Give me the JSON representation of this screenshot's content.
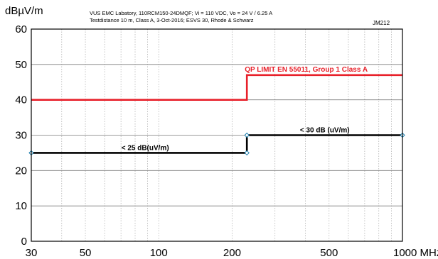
{
  "chart_data": {
    "type": "line",
    "ylabel": "dBµV/m",
    "header_lines": [
      "VUS EMC Labatory, 110RCM150-24DMQF; Vi = 110 VDC, Vo = 24 V / 6.25 A",
      "Testdistance 10 m, Class A, 3-Oct-2016; ESVS 30, Rhode & Schwarz"
    ],
    "code": "JM212",
    "x_scale": "log",
    "xlim": [
      30,
      1000
    ],
    "ylim": [
      0,
      60
    ],
    "x_ticks": [
      30,
      50,
      100,
      200,
      500,
      1000
    ],
    "x_tick_labels": [
      "30",
      "50",
      "100",
      "200",
      "500",
      "1000 MHz"
    ],
    "y_ticks": [
      0,
      10,
      20,
      30,
      40,
      50,
      60
    ],
    "y_tick_labels": [
      "0",
      "10",
      "20",
      "30",
      "40",
      "50",
      "60"
    ],
    "grid": true,
    "series": [
      {
        "name": "QP LIMIT  EN 55011, Group 1 Class A",
        "color": "#e8202a",
        "x": [
          30,
          230,
          230,
          1000
        ],
        "y": [
          40,
          40,
          47,
          47
        ]
      },
      {
        "color": "#000000",
        "x": [
          30,
          230,
          230,
          1000
        ],
        "y": [
          25,
          25,
          30,
          30
        ]
      }
    ],
    "markers": [
      {
        "x": 30,
        "y": 25
      },
      {
        "x": 230,
        "y": 25
      },
      {
        "x": 230,
        "y": 30
      },
      {
        "x": 1000,
        "y": 30
      }
    ],
    "annotations": [
      {
        "text": "< 25 dB(uV/m)",
        "x": 88,
        "y": 25
      },
      {
        "text": "< 30 dB (uV/m)",
        "x": 480,
        "y": 30
      }
    ]
  }
}
